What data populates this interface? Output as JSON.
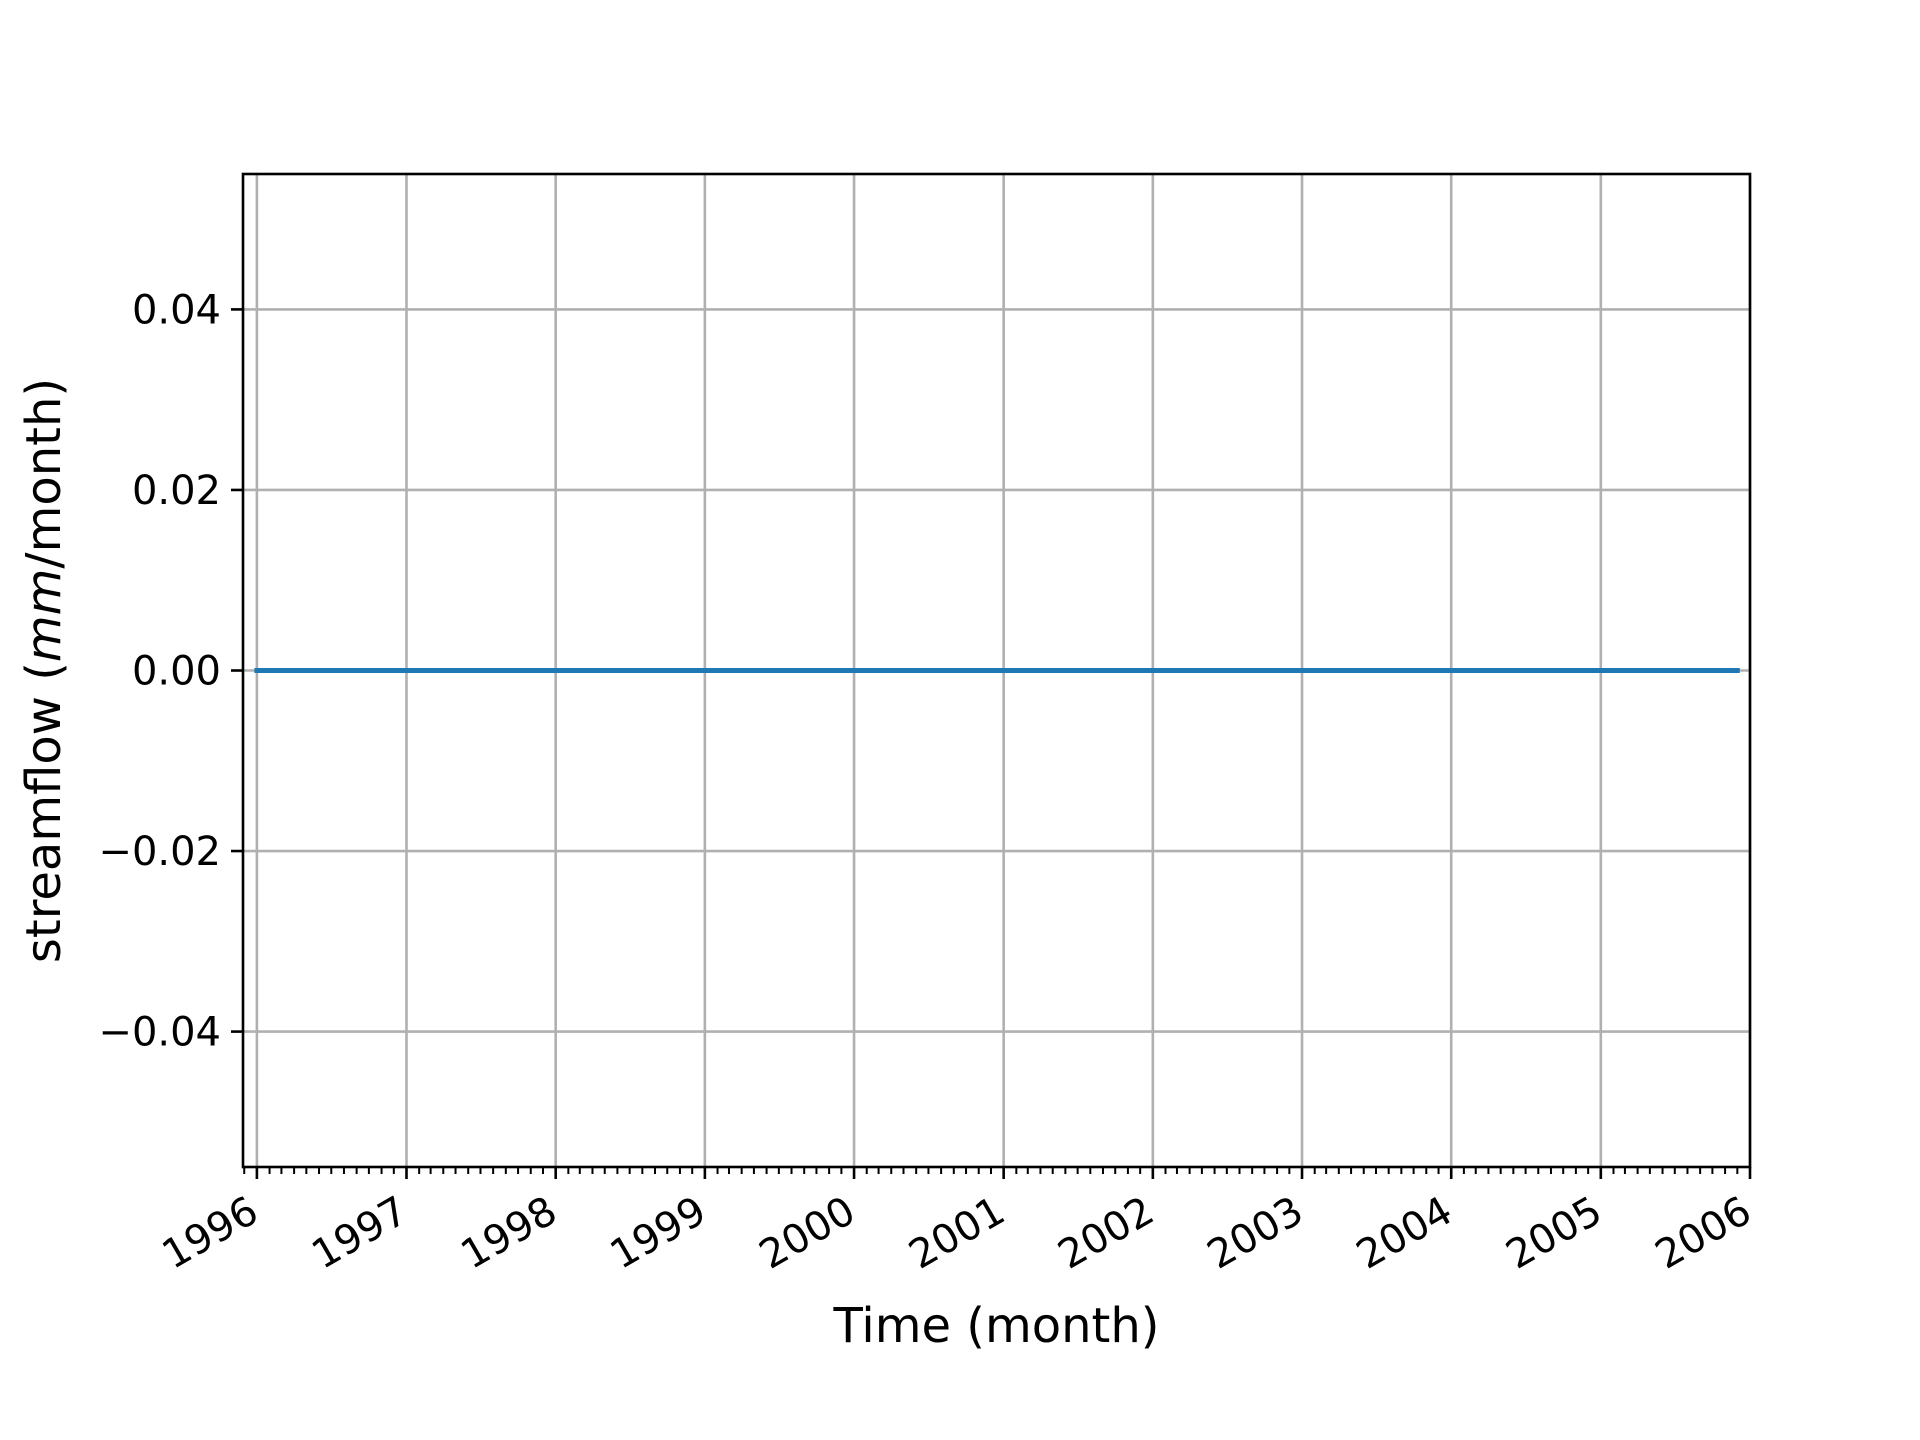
{
  "chart_data": {
    "type": "line",
    "title": "",
    "xlabel": "Time (month)",
    "ylabel": "streamflow (mm/month)",
    "ylabel_parts": {
      "prefix": "streamflow (",
      "unit_italic": "mm",
      "suffix": "/month)"
    },
    "x_tick_labels": [
      "1996",
      "1997",
      "1998",
      "1999",
      "2000",
      "2001",
      "2002",
      "2003",
      "2004",
      "2005",
      "2006"
    ],
    "y_tick_labels": [
      "−0.04",
      "−0.02",
      "0.00",
      "0.02",
      "0.04"
    ],
    "y_ticks": [
      -0.04,
      -0.02,
      0.0,
      0.02,
      0.04
    ],
    "xlim": [
      "1995-11-28",
      "2006-01-01"
    ],
    "ylim": [
      -0.055,
      0.055
    ],
    "grid": true,
    "x_minor_ticks": "monthly",
    "series": [
      {
        "color": "#1f77b4",
        "x_start": "1996-01",
        "x_end": "2005-12",
        "frequency": "monthly",
        "values_note_constant": 0.0,
        "values": [
          0.0
        ]
      }
    ]
  }
}
